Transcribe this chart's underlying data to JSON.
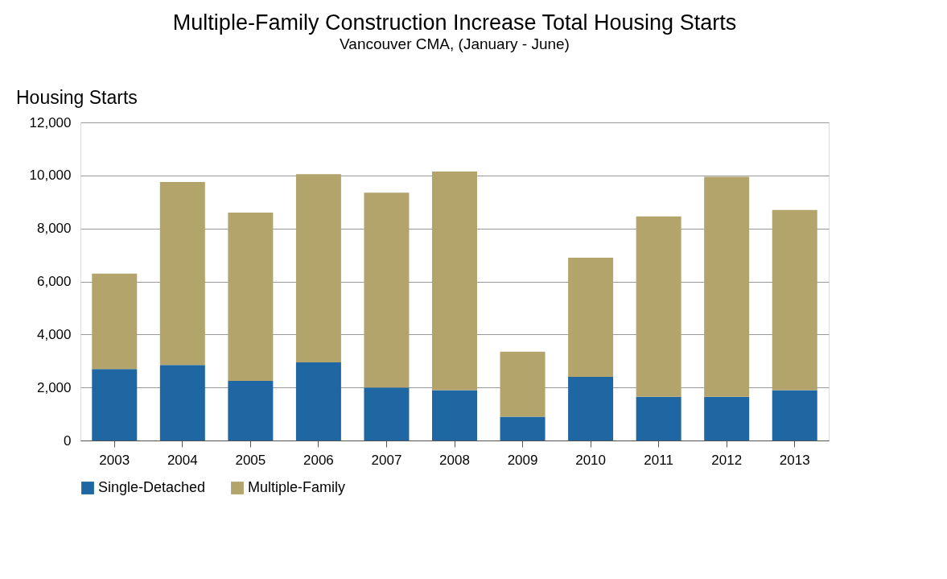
{
  "chart_data": {
    "type": "bar",
    "title": "Multiple-Family Construction Increase Total Housing Starts",
    "subtitle": "Vancouver CMA, (January - June)",
    "ylabel": "Housing Starts",
    "categories": [
      "2003",
      "2004",
      "2005",
      "2006",
      "2007",
      "2008",
      "2009",
      "2010",
      "2011",
      "2012",
      "2013"
    ],
    "stacked": true,
    "series": [
      {
        "name": "Single-Detached",
        "color": "#1f67a3",
        "values": [
          2700,
          2850,
          2250,
          2950,
          2000,
          1900,
          900,
          2400,
          1650,
          1650,
          1900
        ]
      },
      {
        "name": "Multiple-Family",
        "color": "#b3a46c",
        "values": [
          3600,
          6900,
          6350,
          7100,
          7350,
          8250,
          2450,
          4500,
          6800,
          8300,
          6800
        ]
      }
    ],
    "ylim": [
      0,
      12000
    ],
    "yticks": [
      0,
      {
        "value": 2000,
        "label": "2,000"
      },
      {
        "value": 4000,
        "label": "4,000"
      },
      {
        "value": 6000,
        "label": "6,000"
      },
      {
        "value": 8000,
        "label": "8,000"
      },
      {
        "value": 10000,
        "label": "10,000"
      },
      {
        "value": 12000,
        "label": "12,000"
      }
    ],
    "grid": "y",
    "legend": "bottom"
  }
}
